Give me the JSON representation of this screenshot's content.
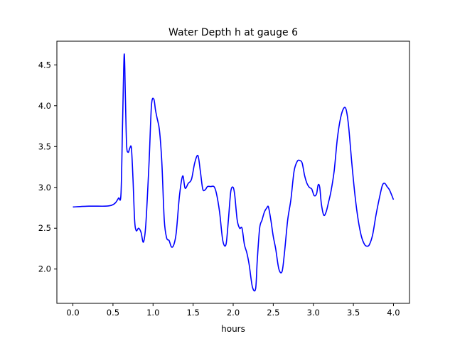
{
  "chart_data": {
    "type": "line",
    "title": "Water Depth h at gauge 6",
    "xlabel": "hours",
    "ylabel": "",
    "xlim": [
      -0.2,
      4.2
    ],
    "ylim": [
      1.58,
      4.79
    ],
    "xticks": [
      0.0,
      0.5,
      1.0,
      1.5,
      2.0,
      2.5,
      3.0,
      3.5,
      4.0
    ],
    "xtick_labels": [
      "0.0",
      "0.5",
      "1.0",
      "1.5",
      "2.0",
      "2.5",
      "3.0",
      "3.5",
      "4.0"
    ],
    "yticks": [
      2.0,
      2.5,
      3.0,
      3.5,
      4.0,
      4.5
    ],
    "ytick_labels": [
      "2.0",
      "2.5",
      "3.0",
      "3.5",
      "4.0",
      "4.5"
    ],
    "grid": false,
    "series": [
      {
        "color": "#0000ff",
        "x": [
          0.0,
          0.2,
          0.4,
          0.48,
          0.53,
          0.57,
          0.6,
          0.62,
          0.64,
          0.655,
          0.67,
          0.69,
          0.71,
          0.73,
          0.75,
          0.77,
          0.79,
          0.82,
          0.85,
          0.88,
          0.91,
          0.95,
          0.98,
          1.01,
          1.03,
          1.05,
          1.08,
          1.11,
          1.14,
          1.17,
          1.2,
          1.23,
          1.26,
          1.29,
          1.33,
          1.37,
          1.4,
          1.44,
          1.48,
          1.52,
          1.56,
          1.59,
          1.62,
          1.65,
          1.68,
          1.72,
          1.76,
          1.79,
          1.83,
          1.87,
          1.91,
          1.94,
          1.97,
          2.0,
          2.02,
          2.05,
          2.08,
          2.11,
          2.14,
          2.17,
          2.2,
          2.24,
          2.28,
          2.3,
          2.33,
          2.36,
          2.39,
          2.42,
          2.44,
          2.47,
          2.5,
          2.53,
          2.57,
          2.61,
          2.64,
          2.68,
          2.72,
          2.76,
          2.8,
          2.83,
          2.86,
          2.89,
          2.92,
          2.95,
          2.98,
          3.01,
          3.04,
          3.06,
          3.08,
          3.1,
          3.13,
          3.16,
          3.19,
          3.22,
          3.26,
          3.3,
          3.34,
          3.38,
          3.41,
          3.44,
          3.48,
          3.52,
          3.56,
          3.6,
          3.64,
          3.67,
          3.7,
          3.74,
          3.78,
          3.82,
          3.86,
          3.89,
          3.92,
          3.95,
          3.98,
          4.0
        ],
        "y": [
          2.76,
          2.77,
          2.77,
          2.78,
          2.81,
          2.87,
          2.92,
          3.8,
          4.63,
          4.1,
          3.52,
          3.43,
          3.48,
          3.48,
          3.1,
          2.6,
          2.47,
          2.5,
          2.45,
          2.33,
          2.55,
          3.3,
          4.0,
          4.08,
          3.95,
          3.85,
          3.7,
          3.3,
          2.6,
          2.38,
          2.35,
          2.27,
          2.3,
          2.45,
          2.9,
          3.14,
          2.99,
          3.05,
          3.1,
          3.3,
          3.39,
          3.2,
          2.98,
          2.97,
          3.01,
          3.01,
          3.01,
          2.93,
          2.7,
          2.35,
          2.3,
          2.6,
          2.95,
          3.0,
          2.9,
          2.6,
          2.5,
          2.5,
          2.3,
          2.2,
          2.05,
          1.78,
          1.76,
          2.1,
          2.5,
          2.6,
          2.7,
          2.75,
          2.76,
          2.6,
          2.4,
          2.25,
          2.0,
          1.97,
          2.2,
          2.6,
          2.85,
          3.2,
          3.32,
          3.33,
          3.3,
          3.15,
          3.05,
          3.0,
          2.98,
          2.9,
          2.92,
          3.03,
          3.0,
          2.8,
          2.66,
          2.7,
          2.82,
          2.95,
          3.2,
          3.6,
          3.85,
          3.97,
          3.95,
          3.75,
          3.3,
          2.9,
          2.6,
          2.4,
          2.3,
          2.28,
          2.3,
          2.42,
          2.65,
          2.85,
          3.02,
          3.05,
          3.01,
          2.97,
          2.9,
          2.85
        ]
      }
    ]
  }
}
